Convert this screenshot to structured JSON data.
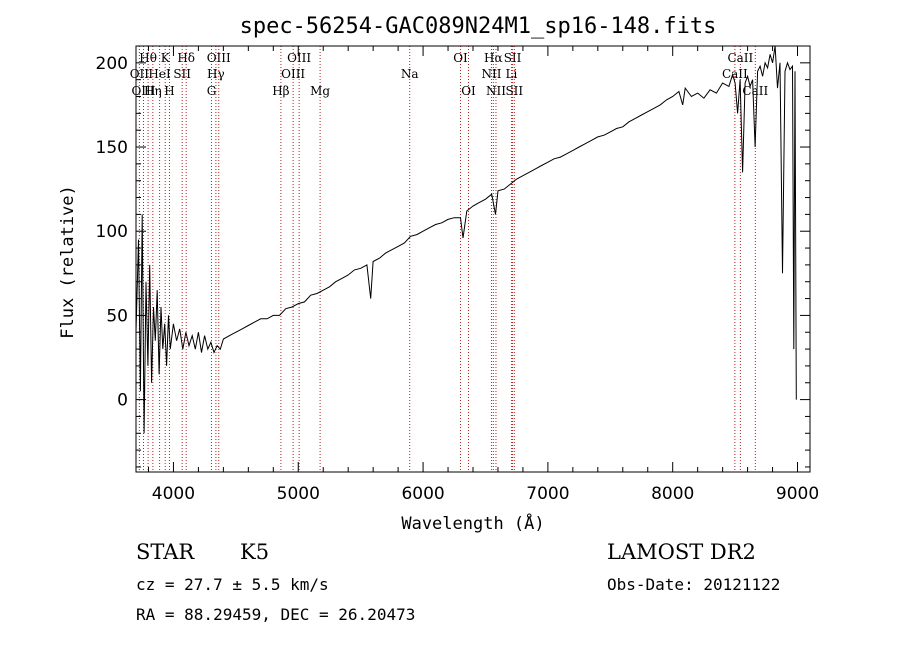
{
  "chart_data": {
    "type": "line",
    "title": "spec-56254-GAC089N24M1_sp16-148.fits",
    "xlabel": "Wavelength (Å)",
    "ylabel": "Flux (relative)",
    "xlim": [
      3700,
      9100
    ],
    "ylim": [
      -43,
      210
    ],
    "xticks": [
      4000,
      5000,
      6000,
      7000,
      8000,
      9000
    ],
    "yticks": [
      0,
      50,
      100,
      150,
      200
    ],
    "grid": false,
    "spectrum": [
      [
        3700,
        40
      ],
      [
        3720,
        95
      ],
      [
        3735,
        5
      ],
      [
        3750,
        110
      ],
      [
        3765,
        -20
      ],
      [
        3780,
        70
      ],
      [
        3795,
        20
      ],
      [
        3810,
        80
      ],
      [
        3825,
        10
      ],
      [
        3840,
        55
      ],
      [
        3855,
        35
      ],
      [
        3870,
        65
      ],
      [
        3885,
        15
      ],
      [
        3900,
        55
      ],
      [
        3915,
        30
      ],
      [
        3930,
        45
      ],
      [
        3945,
        20
      ],
      [
        3960,
        50
      ],
      [
        3975,
        30
      ],
      [
        4000,
        45
      ],
      [
        4025,
        35
      ],
      [
        4050,
        42
      ],
      [
        4075,
        30
      ],
      [
        4100,
        40
      ],
      [
        4125,
        32
      ],
      [
        4150,
        38
      ],
      [
        4175,
        30
      ],
      [
        4200,
        40
      ],
      [
        4225,
        28
      ],
      [
        4250,
        38
      ],
      [
        4275,
        30
      ],
      [
        4300,
        34
      ],
      [
        4325,
        28
      ],
      [
        4350,
        32
      ],
      [
        4375,
        30
      ],
      [
        4400,
        36
      ],
      [
        4450,
        38
      ],
      [
        4500,
        40
      ],
      [
        4550,
        42
      ],
      [
        4600,
        44
      ],
      [
        4650,
        46
      ],
      [
        4700,
        48
      ],
      [
        4750,
        48
      ],
      [
        4800,
        50
      ],
      [
        4850,
        50
      ],
      [
        4900,
        54
      ],
      [
        4950,
        55
      ],
      [
        5000,
        57
      ],
      [
        5050,
        58
      ],
      [
        5100,
        62
      ],
      [
        5150,
        63
      ],
      [
        5200,
        65
      ],
      [
        5250,
        67
      ],
      [
        5300,
        70
      ],
      [
        5350,
        72
      ],
      [
        5400,
        74
      ],
      [
        5450,
        77
      ],
      [
        5500,
        78
      ],
      [
        5550,
        80
      ],
      [
        5580,
        60
      ],
      [
        5600,
        82
      ],
      [
        5650,
        84
      ],
      [
        5700,
        87
      ],
      [
        5750,
        89
      ],
      [
        5800,
        91
      ],
      [
        5850,
        93
      ],
      [
        5900,
        97
      ],
      [
        5950,
        98
      ],
      [
        6000,
        100
      ],
      [
        6050,
        102
      ],
      [
        6100,
        104
      ],
      [
        6150,
        105
      ],
      [
        6200,
        107
      ],
      [
        6250,
        108
      ],
      [
        6300,
        108
      ],
      [
        6320,
        96
      ],
      [
        6350,
        112
      ],
      [
        6400,
        115
      ],
      [
        6450,
        117
      ],
      [
        6500,
        119
      ],
      [
        6550,
        122
      ],
      [
        6580,
        110
      ],
      [
        6600,
        124
      ],
      [
        6650,
        125
      ],
      [
        6700,
        128
      ],
      [
        6750,
        131
      ],
      [
        6800,
        133
      ],
      [
        6850,
        135
      ],
      [
        6900,
        137
      ],
      [
        6950,
        139
      ],
      [
        7000,
        141
      ],
      [
        7050,
        143
      ],
      [
        7100,
        144
      ],
      [
        7150,
        146
      ],
      [
        7200,
        148
      ],
      [
        7250,
        150
      ],
      [
        7300,
        152
      ],
      [
        7350,
        154
      ],
      [
        7400,
        156
      ],
      [
        7450,
        157
      ],
      [
        7500,
        159
      ],
      [
        7550,
        161
      ],
      [
        7600,
        162
      ],
      [
        7650,
        165
      ],
      [
        7700,
        167
      ],
      [
        7750,
        169
      ],
      [
        7800,
        171
      ],
      [
        7850,
        173
      ],
      [
        7900,
        175
      ],
      [
        7950,
        178
      ],
      [
        8000,
        180
      ],
      [
        8050,
        183
      ],
      [
        8080,
        175
      ],
      [
        8100,
        185
      ],
      [
        8150,
        180
      ],
      [
        8200,
        182
      ],
      [
        8250,
        179
      ],
      [
        8300,
        184
      ],
      [
        8350,
        182
      ],
      [
        8400,
        188
      ],
      [
        8450,
        186
      ],
      [
        8480,
        193
      ],
      [
        8500,
        188
      ],
      [
        8520,
        170
      ],
      [
        8540,
        190
      ],
      [
        8560,
        135
      ],
      [
        8580,
        188
      ],
      [
        8600,
        192
      ],
      [
        8620,
        186
      ],
      [
        8640,
        190
      ],
      [
        8660,
        150
      ],
      [
        8680,
        195
      ],
      [
        8700,
        198
      ],
      [
        8720,
        192
      ],
      [
        8740,
        200
      ],
      [
        8760,
        197
      ],
      [
        8780,
        205
      ],
      [
        8800,
        200
      ],
      [
        8820,
        210
      ],
      [
        8840,
        185
      ],
      [
        8860,
        200
      ],
      [
        8880,
        75
      ],
      [
        8900,
        195
      ],
      [
        8920,
        200
      ],
      [
        8940,
        196
      ],
      [
        8960,
        198
      ],
      [
        8970,
        30
      ],
      [
        8980,
        195
      ],
      [
        8990,
        0
      ]
    ],
    "line_markers": [
      {
        "name": "Hθ",
        "wavelength": 3797,
        "row": 1
      },
      {
        "name": "OII",
        "wavelength": 3727,
        "row": 2
      },
      {
        "name": "OIII",
        "wavelength": 3760,
        "row": 3
      },
      {
        "name": "HeI",
        "wavelength": 3889,
        "row": 2
      },
      {
        "name": "Hη",
        "wavelength": 3835,
        "row": 3
      },
      {
        "name": "K",
        "wavelength": 3934,
        "row": 1
      },
      {
        "name": "H",
        "wavelength": 3968,
        "row": 3
      },
      {
        "name": "SII",
        "wavelength": 4070,
        "row": 2
      },
      {
        "name": "Hδ",
        "wavelength": 4102,
        "row": 1
      },
      {
        "name": "OIII",
        "wavelength": 4363,
        "row": 1
      },
      {
        "name": "Hγ",
        "wavelength": 4340,
        "row": 2
      },
      {
        "name": "G",
        "wavelength": 4305,
        "row": 3
      },
      {
        "name": "Hβ",
        "wavelength": 4861,
        "row": 3
      },
      {
        "name": "OIII",
        "wavelength": 5007,
        "row": 1
      },
      {
        "name": "OIII",
        "wavelength": 4959,
        "row": 2
      },
      {
        "name": "Mg",
        "wavelength": 5175,
        "row": 3
      },
      {
        "name": "Na",
        "wavelength": 5893,
        "row": 2
      },
      {
        "name": "OI",
        "wavelength": 6300,
        "row": 1
      },
      {
        "name": "OI",
        "wavelength": 6364,
        "row": 3
      },
      {
        "name": "Hα",
        "wavelength": 6563,
        "row": 1
      },
      {
        "name": "NII",
        "wavelength": 6548,
        "row": 2
      },
      {
        "name": "NII",
        "wavelength": 6584,
        "row": 3
      },
      {
        "name": "SII",
        "wavelength": 6717,
        "row": 1
      },
      {
        "name": "Li",
        "wavelength": 6708,
        "row": 2
      },
      {
        "name": "SII",
        "wavelength": 6731,
        "row": 3
      },
      {
        "name": "CaII",
        "wavelength": 8542,
        "row": 1
      },
      {
        "name": "CaII",
        "wavelength": 8498,
        "row": 2
      },
      {
        "name": "CaII",
        "wavelength": 8662,
        "row": 3
      }
    ],
    "marker_color": "#b22222"
  },
  "info": {
    "object_class": "STAR",
    "subclass": "K5",
    "survey": "LAMOST DR2",
    "cz": "cz = 27.7 ± 5.5 km/s",
    "obs_date": "Obs-Date: 20121122",
    "coords": "RA =  88.29459, DEC =  26.20473"
  }
}
